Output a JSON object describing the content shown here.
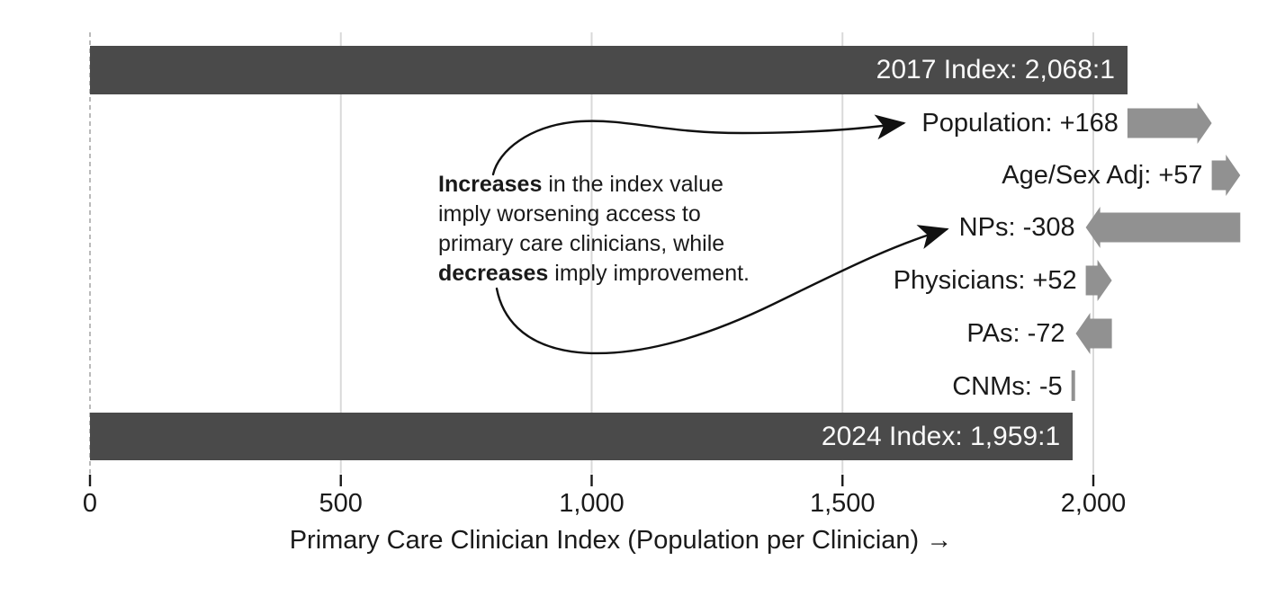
{
  "chart_data": {
    "type": "waterfall",
    "orientation": "horizontal",
    "xlabel": "Primary Care Clinician Index (Population per Clinician) →",
    "x_axis": {
      "min": 0,
      "max": 2300,
      "tick_values": [
        0,
        500,
        1000,
        1500,
        2000
      ],
      "tick_labels": [
        "0",
        "500",
        "1,000",
        "1,500",
        "2,000"
      ],
      "gridlines": true,
      "zero_line": "dashed"
    },
    "steps": [
      {
        "id": "index-2017",
        "label": "2017 Index: 2,068:1",
        "kind": "total",
        "value": 2068
      },
      {
        "id": "population",
        "label": "Population: +168",
        "kind": "delta",
        "delta": 168
      },
      {
        "id": "age-sex-adj",
        "label": "Age/Sex Adj: +57",
        "kind": "delta",
        "delta": 57
      },
      {
        "id": "nps",
        "label": "NPs: -308",
        "kind": "delta",
        "delta": -308
      },
      {
        "id": "physicians",
        "label": "Physicians: +52",
        "kind": "delta",
        "delta": 52
      },
      {
        "id": "pas",
        "label": "PAs: -72",
        "kind": "delta",
        "delta": -72
      },
      {
        "id": "cnms",
        "label": "CNMs: -5",
        "kind": "delta",
        "delta": -5
      },
      {
        "id": "index-2024",
        "label": "2024 Index: 1,959:1",
        "kind": "total",
        "value": 1959
      }
    ],
    "annotation": {
      "lines": [
        [
          {
            "text": "Increases",
            "bold": true
          },
          {
            "text": " in the index value",
            "bold": false
          }
        ],
        [
          {
            "text": "imply worsening access to",
            "bold": false
          }
        ],
        [
          {
            "text": "primary care clinicians, while",
            "bold": false
          }
        ],
        [
          {
            "text": "decreases",
            "bold": true
          },
          {
            "text": " imply improvement.",
            "bold": false
          }
        ]
      ]
    },
    "colors": {
      "total_bar": "#4a4a4a",
      "delta_arrow": "#919191",
      "bar_text": "#fafafa",
      "text": "#1a1a1a",
      "gridline": "#d9d9d9",
      "zero_line": "#a9a9a9",
      "annotation_arrow": "#111111"
    },
    "legend": null,
    "title": ""
  }
}
